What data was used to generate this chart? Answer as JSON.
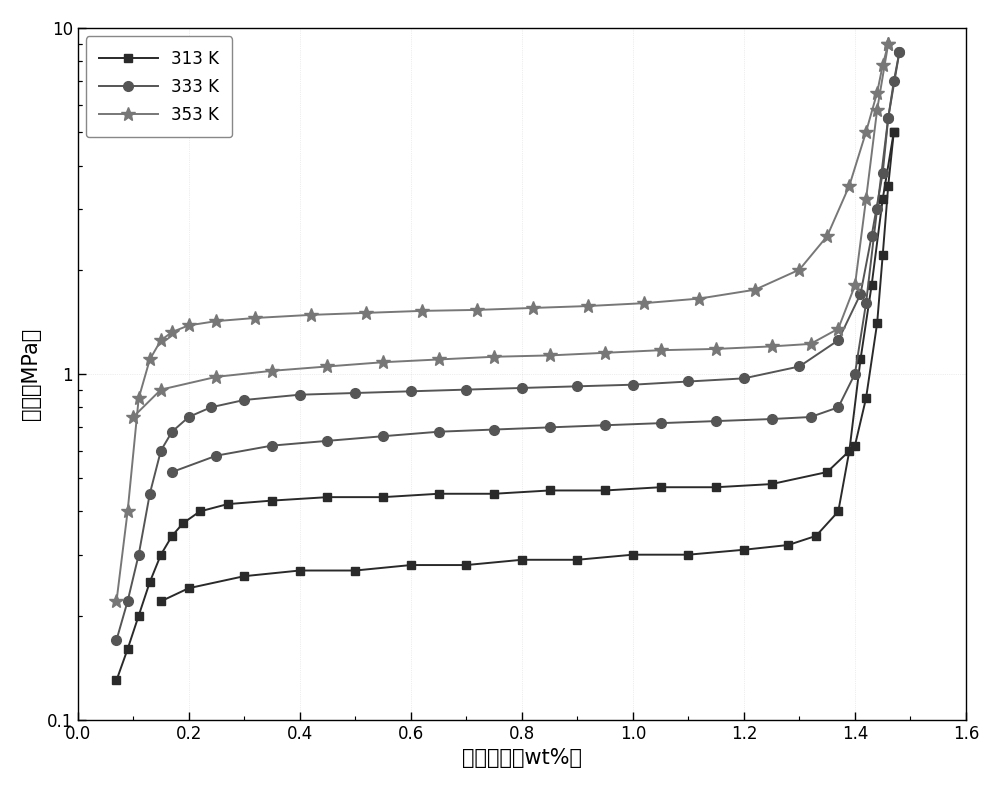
{
  "title": "",
  "xlabel": "氢气含量（wt%）",
  "ylabel": "压力（MPa）",
  "xlim": [
    0.0,
    1.6
  ],
  "ylim": [
    0.1,
    10
  ],
  "xticks": [
    0.0,
    0.2,
    0.4,
    0.6,
    0.8,
    1.0,
    1.2,
    1.4,
    1.6
  ],
  "background_color": "#ffffff",
  "series": [
    {
      "label": "313 K",
      "marker": "s",
      "markersize": 6,
      "color": "#2a2a2a",
      "absorption_x": [
        0.07,
        0.09,
        0.11,
        0.13,
        0.15,
        0.17,
        0.19,
        0.22,
        0.27,
        0.35,
        0.45,
        0.55,
        0.65,
        0.75,
        0.85,
        0.95,
        1.05,
        1.15,
        1.25,
        1.35,
        1.4,
        1.42,
        1.44,
        1.45,
        1.46,
        1.47
      ],
      "absorption_y": [
        0.13,
        0.16,
        0.2,
        0.25,
        0.3,
        0.34,
        0.37,
        0.4,
        0.42,
        0.43,
        0.44,
        0.44,
        0.45,
        0.45,
        0.46,
        0.46,
        0.47,
        0.47,
        0.48,
        0.52,
        0.62,
        0.85,
        1.4,
        2.2,
        3.5,
        5.0
      ],
      "desorption_x": [
        1.47,
        1.45,
        1.43,
        1.41,
        1.39,
        1.37,
        1.33,
        1.28,
        1.2,
        1.1,
        1.0,
        0.9,
        0.8,
        0.7,
        0.6,
        0.5,
        0.4,
        0.3,
        0.2,
        0.15
      ],
      "desorption_y": [
        5.0,
        3.2,
        1.8,
        1.1,
        0.6,
        0.4,
        0.34,
        0.32,
        0.31,
        0.3,
        0.3,
        0.29,
        0.29,
        0.28,
        0.28,
        0.27,
        0.27,
        0.26,
        0.24,
        0.22
      ]
    },
    {
      "label": "333 K",
      "marker": "o",
      "markersize": 7,
      "color": "#555555",
      "absorption_x": [
        0.07,
        0.09,
        0.11,
        0.13,
        0.15,
        0.17,
        0.2,
        0.24,
        0.3,
        0.4,
        0.5,
        0.6,
        0.7,
        0.8,
        0.9,
        1.0,
        1.1,
        1.2,
        1.3,
        1.37,
        1.41,
        1.43,
        1.45,
        1.46,
        1.47,
        1.48
      ],
      "absorption_y": [
        0.17,
        0.22,
        0.3,
        0.45,
        0.6,
        0.68,
        0.75,
        0.8,
        0.84,
        0.87,
        0.88,
        0.89,
        0.9,
        0.91,
        0.92,
        0.93,
        0.95,
        0.97,
        1.05,
        1.25,
        1.7,
        2.5,
        3.8,
        5.5,
        7.0,
        8.5
      ],
      "desorption_x": [
        1.48,
        1.46,
        1.44,
        1.42,
        1.4,
        1.37,
        1.32,
        1.25,
        1.15,
        1.05,
        0.95,
        0.85,
        0.75,
        0.65,
        0.55,
        0.45,
        0.35,
        0.25,
        0.17
      ],
      "desorption_y": [
        8.5,
        5.5,
        3.0,
        1.6,
        1.0,
        0.8,
        0.75,
        0.74,
        0.73,
        0.72,
        0.71,
        0.7,
        0.69,
        0.68,
        0.66,
        0.64,
        0.62,
        0.58,
        0.52
      ]
    },
    {
      "label": "353 K",
      "marker": "*",
      "markersize": 10,
      "color": "#777777",
      "absorption_x": [
        0.07,
        0.09,
        0.11,
        0.13,
        0.15,
        0.17,
        0.2,
        0.25,
        0.32,
        0.42,
        0.52,
        0.62,
        0.72,
        0.82,
        0.92,
        1.02,
        1.12,
        1.22,
        1.3,
        1.35,
        1.39,
        1.42,
        1.44,
        1.45,
        1.46
      ],
      "absorption_y": [
        0.22,
        0.4,
        0.85,
        1.1,
        1.25,
        1.32,
        1.38,
        1.42,
        1.45,
        1.48,
        1.5,
        1.52,
        1.53,
        1.55,
        1.57,
        1.6,
        1.65,
        1.75,
        2.0,
        2.5,
        3.5,
        5.0,
        6.5,
        7.8,
        9.0
      ],
      "desorption_x": [
        1.46,
        1.44,
        1.42,
        1.4,
        1.37,
        1.32,
        1.25,
        1.15,
        1.05,
        0.95,
        0.85,
        0.75,
        0.65,
        0.55,
        0.45,
        0.35,
        0.25,
        0.15,
        0.1
      ],
      "desorption_y": [
        9.0,
        5.8,
        3.2,
        1.8,
        1.35,
        1.22,
        1.2,
        1.18,
        1.17,
        1.15,
        1.13,
        1.12,
        1.1,
        1.08,
        1.05,
        1.02,
        0.98,
        0.9,
        0.75
      ]
    }
  ],
  "linewidth": 1.4,
  "xlabel_fontsize": 15,
  "ylabel_fontsize": 15,
  "tick_fontsize": 12,
  "legend_fontsize": 12
}
